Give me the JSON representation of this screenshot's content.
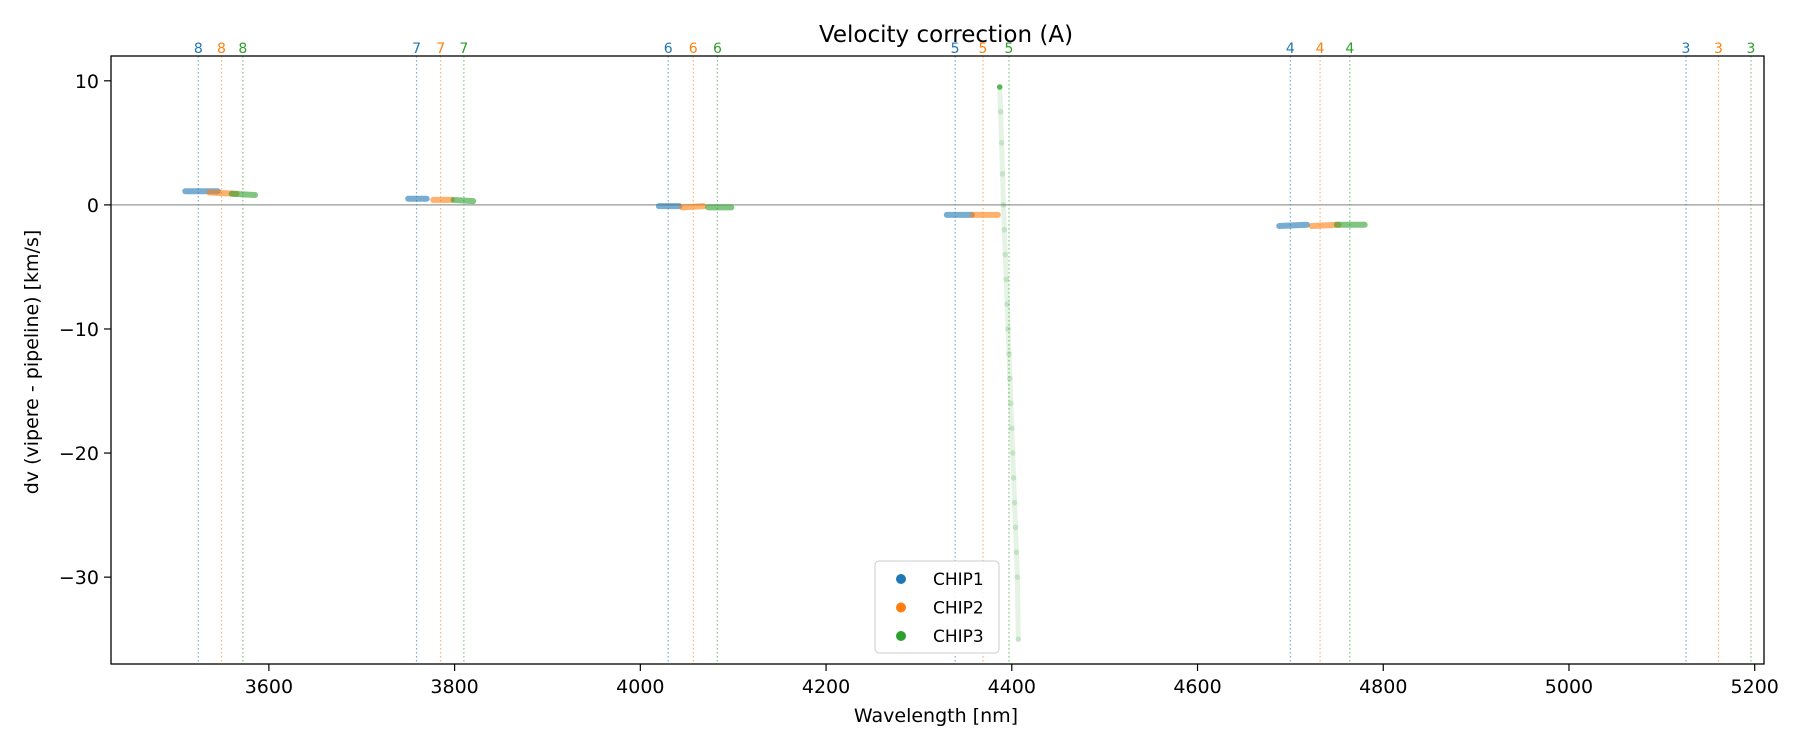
{
  "chart_data": {
    "type": "scatter",
    "title": "Velocity correction (A)",
    "xlabel": "Wavelength [nm]",
    "ylabel": "dv (vipere - pipeline) [km/s]",
    "xlim": [
      3430,
      5210
    ],
    "ylim": [
      -37,
      12
    ],
    "xticks": [
      3600,
      3800,
      4000,
      4200,
      4400,
      4600,
      4800,
      5000,
      5200
    ],
    "yticks": [
      10,
      0,
      -10,
      -20,
      -30
    ],
    "ytick_labels": [
      "10",
      "0",
      "−10",
      "−20",
      "−30"
    ],
    "reference_line_y": 0,
    "legend": {
      "position": "lower-center",
      "entries": [
        "CHIP1",
        "CHIP2",
        "CHIP3"
      ]
    },
    "series": [
      {
        "name": "CHIP1",
        "color": "#1f77b4",
        "segments": [
          {
            "order": "8",
            "x0": 3510,
            "x1": 3545,
            "y0": 1.1,
            "y1": 1.1
          },
          {
            "order": "7",
            "x0": 3750,
            "x1": 3770,
            "y0": 0.5,
            "y1": 0.5
          },
          {
            "order": "6",
            "x0": 4020,
            "x1": 4042,
            "y0": -0.1,
            "y1": -0.1
          },
          {
            "order": "5",
            "x0": 4330,
            "x1": 4357,
            "y0": -0.8,
            "y1": -0.8
          },
          {
            "order": "4",
            "x0": 4688,
            "x1": 4718,
            "y0": -1.7,
            "y1": -1.6
          }
        ]
      },
      {
        "name": "CHIP2",
        "color": "#ff7f0e",
        "segments": [
          {
            "order": "8",
            "x0": 3536,
            "x1": 3565,
            "y0": 1.0,
            "y1": 0.9
          },
          {
            "order": "7",
            "x0": 3777,
            "x1": 3797,
            "y0": 0.4,
            "y1": 0.4
          },
          {
            "order": "6",
            "x0": 4045,
            "x1": 4068,
            "y0": -0.2,
            "y1": -0.1
          },
          {
            "order": "5",
            "x0": 4358,
            "x1": 4385,
            "y0": -0.8,
            "y1": -0.8
          },
          {
            "order": "4",
            "x0": 4723,
            "x1": 4752,
            "y0": -1.7,
            "y1": -1.6
          }
        ]
      },
      {
        "name": "CHIP3",
        "color": "#2ca02c",
        "segments": [
          {
            "order": "8",
            "x0": 3560,
            "x1": 3585,
            "y0": 0.9,
            "y1": 0.8
          },
          {
            "order": "7",
            "x0": 3799,
            "x1": 3820,
            "y0": 0.4,
            "y1": 0.3
          },
          {
            "order": "6",
            "x0": 4073,
            "x1": 4098,
            "y0": -0.2,
            "y1": -0.2
          },
          {
            "order": "4",
            "x0": 4750,
            "x1": 4780,
            "y0": -1.6,
            "y1": -1.6
          }
        ],
        "curve": {
          "order": "5",
          "x": [
            4387,
            4388,
            4389,
            4390,
            4391,
            4392,
            4393,
            4394,
            4395,
            4396,
            4397,
            4398,
            4399,
            4400,
            4401,
            4402,
            4403,
            4404,
            4405,
            4406,
            4407
          ],
          "y": [
            9.5,
            7.5,
            5.0,
            2.5,
            0,
            -2,
            -4,
            -6,
            -8,
            -10,
            -12,
            -14,
            -16,
            -18,
            -20,
            -22,
            -24,
            -26,
            -28,
            -30,
            -35
          ]
        }
      }
    ],
    "order_markers": [
      {
        "order": "8",
        "chip": "CHIP1",
        "x": 3524
      },
      {
        "order": "8",
        "chip": "CHIP2",
        "x": 3549
      },
      {
        "order": "8",
        "chip": "CHIP3",
        "x": 3572
      },
      {
        "order": "7",
        "chip": "CHIP1",
        "x": 3759
      },
      {
        "order": "7",
        "chip": "CHIP2",
        "x": 3785
      },
      {
        "order": "7",
        "chip": "CHIP3",
        "x": 3810
      },
      {
        "order": "6",
        "chip": "CHIP1",
        "x": 4030
      },
      {
        "order": "6",
        "chip": "CHIP2",
        "x": 4057
      },
      {
        "order": "6",
        "chip": "CHIP3",
        "x": 4083
      },
      {
        "order": "5",
        "chip": "CHIP1",
        "x": 4339
      },
      {
        "order": "5",
        "chip": "CHIP2",
        "x": 4369
      },
      {
        "order": "5",
        "chip": "CHIP3",
        "x": 4397
      },
      {
        "order": "4",
        "chip": "CHIP1",
        "x": 4700
      },
      {
        "order": "4",
        "chip": "CHIP2",
        "x": 4732
      },
      {
        "order": "4",
        "chip": "CHIP3",
        "x": 4764
      },
      {
        "order": "3",
        "chip": "CHIP1",
        "x": 5126
      },
      {
        "order": "3",
        "chip": "CHIP2",
        "x": 5161
      },
      {
        "order": "3",
        "chip": "CHIP3",
        "x": 5196
      }
    ]
  }
}
